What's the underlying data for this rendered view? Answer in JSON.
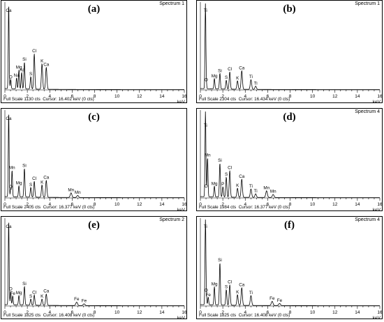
{
  "chart_data": [
    {
      "type": "line",
      "panel": "(a)",
      "title": "Spectrum 1",
      "xlabel": "keV",
      "xlim": [
        0,
        16
      ],
      "x_ticks": [
        "0",
        "2",
        "4",
        "6",
        "8",
        "10",
        "12",
        "14",
        "16"
      ],
      "full_scale": "Full Scale 1130 cts",
      "cursor": "Cursor: 16.402 keV (0 cts)",
      "peaks": [
        {
          "label": "Ca",
          "x": 0.34,
          "y": 850
        },
        {
          "label": "O",
          "x": 0.52,
          "y": 95
        },
        {
          "label": "Na",
          "x": 1.04,
          "y": 110
        },
        {
          "label": "Mg",
          "x": 1.25,
          "y": 190
        },
        {
          "label": "Al",
          "x": 1.49,
          "y": 165
        },
        {
          "label": "Si",
          "x": 1.74,
          "y": 270
        },
        {
          "label": "S",
          "x": 2.31,
          "y": 125
        },
        {
          "label": "Cl",
          "x": 2.62,
          "y": 355
        },
        {
          "label": "K",
          "x": 3.31,
          "y": 255
        },
        {
          "label": "Ca",
          "x": 3.69,
          "y": 220
        }
      ]
    },
    {
      "type": "line",
      "panel": "(b)",
      "title": "Spectrum 1",
      "xlabel": "keV",
      "xlim": [
        0,
        16
      ],
      "x_ticks": [
        "0",
        "2",
        "4",
        "6",
        "8",
        "10",
        "12",
        "14",
        "16"
      ],
      "full_scale": "Full Scale 2304 cts",
      "cursor": "Cursor: 16.434 keV (0 cts)",
      "peaks": [
        {
          "label": "Ti",
          "x": 0.45,
          "y": 2100
        },
        {
          "label": "O",
          "x": 0.52,
          "y": 160
        },
        {
          "label": "Mg",
          "x": 1.25,
          "y": 260
        },
        {
          "label": "Si",
          "x": 1.74,
          "y": 390
        },
        {
          "label": "S",
          "x": 2.31,
          "y": 220
        },
        {
          "label": "Cl",
          "x": 2.62,
          "y": 430
        },
        {
          "label": "K",
          "x": 3.31,
          "y": 210
        },
        {
          "label": "Ca",
          "x": 3.69,
          "y": 460
        },
        {
          "label": "Ti",
          "x": 4.51,
          "y": 240
        },
        {
          "label": "Ti",
          "x": 4.93,
          "y": 80
        }
      ]
    },
    {
      "type": "line",
      "panel": "(c)",
      "title": "",
      "xlabel": "keV",
      "xlim": [
        0,
        16
      ],
      "x_ticks": [
        "0",
        "2",
        "4",
        "6",
        "8",
        "10",
        "12",
        "14",
        "16"
      ],
      "full_scale": "Full Scale 2405 cts",
      "cursor": "Cursor: 16.377 keV (0 cts)",
      "peaks": [
        {
          "label": "Ca",
          "x": 0.34,
          "y": 1650
        },
        {
          "label": "Mn",
          "x": 0.64,
          "y": 520
        },
        {
          "label": "O",
          "x": 0.52,
          "y": 150
        },
        {
          "label": "Mg",
          "x": 1.25,
          "y": 220
        },
        {
          "label": "Si",
          "x": 1.74,
          "y": 560
        },
        {
          "label": "S",
          "x": 2.31,
          "y": 190
        },
        {
          "label": "Cl",
          "x": 2.62,
          "y": 310
        },
        {
          "label": "K",
          "x": 3.31,
          "y": 240
        },
        {
          "label": "Ca",
          "x": 3.69,
          "y": 330
        },
        {
          "label": "Mn",
          "x": 5.9,
          "y": 90
        },
        {
          "label": "Mn",
          "x": 6.49,
          "y": 40
        }
      ]
    },
    {
      "type": "line",
      "panel": "(d)",
      "title": "Spectrum 4",
      "xlabel": "keV",
      "xlim": [
        0,
        16
      ],
      "x_ticks": [
        "0",
        "2",
        "4",
        "6",
        "8",
        "10",
        "12",
        "14",
        "16"
      ],
      "full_scale": "Full Scale 1984 cts",
      "cursor": "Cursor: 16.377 keV (0 cts)",
      "peaks": [
        {
          "label": "Mn",
          "x": 0.64,
          "y": 650
        },
        {
          "label": "Ti",
          "x": 0.45,
          "y": 1400
        },
        {
          "label": "O",
          "x": 0.52,
          "y": 140
        },
        {
          "label": "Mg",
          "x": 1.25,
          "y": 180
        },
        {
          "label": "Si",
          "x": 1.74,
          "y": 560
        },
        {
          "label": "P",
          "x": 2.01,
          "y": 170
        },
        {
          "label": "S",
          "x": 2.31,
          "y": 330
        },
        {
          "label": "Cl",
          "x": 2.62,
          "y": 440
        },
        {
          "label": "K",
          "x": 3.31,
          "y": 150
        },
        {
          "label": "Ca",
          "x": 3.69,
          "y": 300
        },
        {
          "label": "Ti",
          "x": 4.51,
          "y": 140
        },
        {
          "label": "Ti",
          "x": 4.93,
          "y": 60
        },
        {
          "label": "Mn",
          "x": 5.9,
          "y": 110
        },
        {
          "label": "Mn",
          "x": 6.49,
          "y": 50
        }
      ]
    },
    {
      "type": "line",
      "panel": "(e)",
      "title": "Spectrum 2",
      "xlabel": "keV",
      "xlim": [
        0,
        16
      ],
      "x_ticks": [
        "0",
        "2",
        "4",
        "6",
        "8",
        "10",
        "12",
        "14",
        "16"
      ],
      "full_scale": "Full Scale 1825 cts",
      "cursor": "Cursor: 16.408 keV (0 cts)",
      "peaks": [
        {
          "label": "Ca",
          "x": 0.34,
          "y": 1500
        },
        {
          "label": "O",
          "x": 0.52,
          "y": 240
        },
        {
          "label": "Fe",
          "x": 0.7,
          "y": 160
        },
        {
          "label": "Mg",
          "x": 1.25,
          "y": 170
        },
        {
          "label": "Si",
          "x": 1.74,
          "y": 330
        },
        {
          "label": "S",
          "x": 2.31,
          "y": 110
        },
        {
          "label": "Cl",
          "x": 2.62,
          "y": 180
        },
        {
          "label": "K",
          "x": 3.31,
          "y": 110
        },
        {
          "label": "Ca",
          "x": 3.69,
          "y": 200
        },
        {
          "label": "Fe",
          "x": 6.4,
          "y": 60
        },
        {
          "label": "Fe",
          "x": 7.06,
          "y": 30
        }
      ]
    },
    {
      "type": "line",
      "panel": "(f)",
      "title": "Spectrum 4",
      "xlabel": "keV",
      "xlim": [
        0,
        16
      ],
      "x_ticks": [
        "0",
        "2",
        "4",
        "6",
        "8",
        "10",
        "12",
        "14",
        "16"
      ],
      "full_scale": "Full Scale 1825 cts",
      "cursor": "Cursor: 16.408 keV (0 cts)",
      "peaks": [
        {
          "label": "Ti",
          "x": 0.45,
          "y": 1200
        },
        {
          "label": "O",
          "x": 0.52,
          "y": 170
        },
        {
          "label": "Fe",
          "x": 0.7,
          "y": 110
        },
        {
          "label": "Mg",
          "x": 1.25,
          "y": 260
        },
        {
          "label": "Si",
          "x": 1.74,
          "y": 600
        },
        {
          "label": "S",
          "x": 2.31,
          "y": 220
        },
        {
          "label": "Cl",
          "x": 2.62,
          "y": 290
        },
        {
          "label": "K",
          "x": 3.31,
          "y": 150
        },
        {
          "label": "Ca",
          "x": 3.69,
          "y": 250
        },
        {
          "label": "Ti",
          "x": 4.51,
          "y": 140
        },
        {
          "label": "Fe",
          "x": 6.4,
          "y": 60
        },
        {
          "label": "Fe",
          "x": 7.06,
          "y": 30
        }
      ]
    }
  ]
}
